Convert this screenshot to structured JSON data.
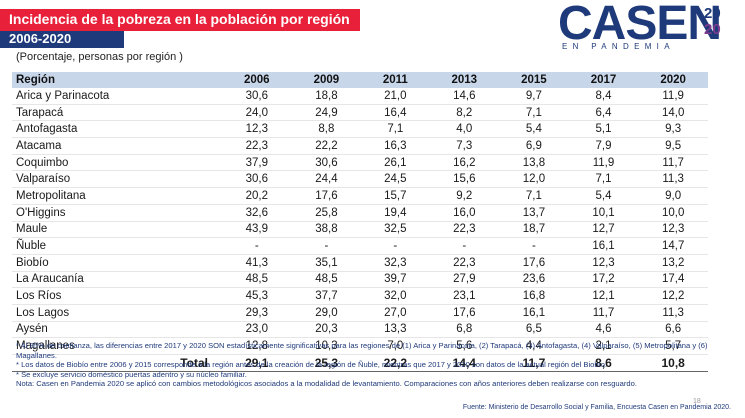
{
  "header": {
    "title": "Incidencia de la pobreza en la población por región",
    "period": "2006-2020",
    "unit_note": "(Porcentaje, personas por región )"
  },
  "logo": {
    "brand": "CASEN",
    "year_top": "20",
    "year_bottom": "20",
    "tagline": "EN PANDEMIA"
  },
  "colors": {
    "red": "#e8203a",
    "navy": "#1f3a7a",
    "header_row": "#c8d6ea"
  },
  "table": {
    "columns": [
      "Región",
      "2006",
      "2009",
      "2011",
      "2013",
      "2015",
      "2017",
      "2020"
    ],
    "rows": [
      [
        "Arica y Parinacota",
        "30,6",
        "18,8",
        "21,0",
        "14,6",
        "9,7",
        "8,4",
        "11,9"
      ],
      [
        "Tarapacá",
        "24,0",
        "24,9",
        "16,4",
        "8,2",
        "7,1",
        "6,4",
        "14,0"
      ],
      [
        "Antofagasta",
        "12,3",
        "8,8",
        "7,1",
        "4,0",
        "5,4",
        "5,1",
        "9,3"
      ],
      [
        "Atacama",
        "22,3",
        "22,2",
        "16,3",
        "7,3",
        "6,9",
        "7,9",
        "9,5"
      ],
      [
        "Coquimbo",
        "37,9",
        "30,6",
        "26,1",
        "16,2",
        "13,8",
        "11,9",
        "11,7"
      ],
      [
        "Valparaíso",
        "30,6",
        "24,4",
        "24,5",
        "15,6",
        "12,0",
        "7,1",
        "11,3"
      ],
      [
        "Metropolitana",
        "20,2",
        "17,6",
        "15,7",
        "9,2",
        "7,1",
        "5,4",
        "9,0"
      ],
      [
        "O'Higgins",
        "32,6",
        "25,8",
        "19,4",
        "16,0",
        "13,7",
        "10,1",
        "10,0"
      ],
      [
        "Maule",
        "43,9",
        "38,8",
        "32,5",
        "22,3",
        "18,7",
        "12,7",
        "12,3"
      ],
      [
        "Ñuble",
        "-",
        "-",
        "-",
        "-",
        "-",
        "16,1",
        "14,7"
      ],
      [
        "Biobío",
        "41,3",
        "35,1",
        "32,3",
        "22,3",
        "17,6",
        "12,3",
        "13,2"
      ],
      [
        "La Araucanía",
        "48,5",
        "48,5",
        "39,7",
        "27,9",
        "23,6",
        "17,2",
        "17,4"
      ],
      [
        "Los Ríos",
        "45,3",
        "37,7",
        "32,0",
        "23,1",
        "16,8",
        "12,1",
        "12,2"
      ],
      [
        "Los Lagos",
        "29,3",
        "29,0",
        "27,0",
        "17,6",
        "16,1",
        "11,7",
        "11,3"
      ],
      [
        "Aysén",
        "23,0",
        "20,3",
        "13,3",
        "6,8",
        "6,5",
        "4,6",
        "6,6"
      ],
      [
        "Magallanes",
        "12,8",
        "10,3",
        "7,0",
        "5,6",
        "4,4",
        "2,1",
        "5,7"
      ]
    ],
    "total": [
      "Total",
      "29,1",
      "25,3",
      "22,2",
      "14,4",
      "11,7",
      "8,6",
      "10,8"
    ]
  },
  "footnotes": [
    "* Al 95% de confianza, las diferencias entre 2017 y 2020 SON estadísticamente significativas para las regiones de (1) Arica y Parinacota, (2) Tarapacá, (3) Antofagasta, (4) Valparaíso, (5) Metropolitana y (6) Magallanes.",
    "* Los datos de Biobío entre 2006 y 2015 corresponde a la región antes de la creación de la región de Ñuble, mientras que 2017 y 2020 son datos de la actual región del Biobío.",
    "* Se excluye servicio doméstico puertas adentro y su núcleo familiar.",
    "Nota: Casen en Pandemia 2020 se aplicó con cambios metodológicos asociados a la modalidad de levantamiento. Comparaciones con años anteriores deben realizarse con resguardo."
  ],
  "source": "Fuente: Ministerio de Desarrollo Social y Familia, Encuesta Casen en Pandemia 2020.",
  "page_number": "18"
}
